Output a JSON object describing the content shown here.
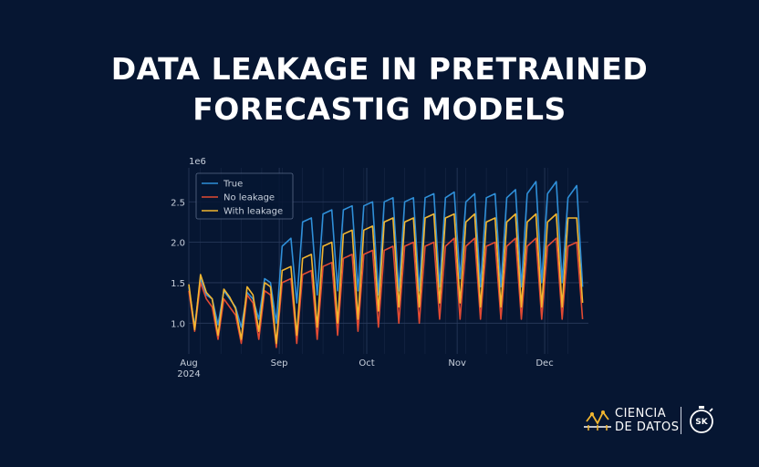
{
  "title_line1": "DATA LEAKAGE IN PRETRAINED",
  "title_line2": "FORECASTIG MODELS",
  "brand": {
    "line1": "CIENCIA",
    "line2": "DE DATOS",
    "badge": "SK",
    "logo_icon": "timeseries-logo-icon",
    "badge_icon": "stopwatch-icon"
  },
  "colors": {
    "background": "#061632",
    "grid": "#2a3b5c",
    "true": "#2f8fd8",
    "no_leakage": "#e24a33",
    "with_leakage": "#f2b630",
    "text": "#c8d0dc"
  },
  "chart_data": {
    "type": "line",
    "title": "",
    "xlabel": "",
    "ylabel": "",
    "y_offset_label": "1e6",
    "x_range": [
      "2024-08-01",
      "2024-12-16"
    ],
    "ylim": [
      0.62,
      2.92
    ],
    "yticks": [
      1.0,
      1.5,
      2.0,
      2.5
    ],
    "ytick_labels": [
      "1.0",
      "1.5",
      "2.0",
      "2.5"
    ],
    "xticks": [
      {
        "date": "2024-08-01",
        "label": "Aug",
        "sublabel": "2024"
      },
      {
        "date": "2024-09-01",
        "label": "Sep",
        "sublabel": ""
      },
      {
        "date": "2024-10-01",
        "label": "Oct",
        "sublabel": ""
      },
      {
        "date": "2024-11-01",
        "label": "Nov",
        "sublabel": ""
      },
      {
        "date": "2024-12-01",
        "label": "Dec",
        "sublabel": ""
      }
    ],
    "legend_position": "upper left",
    "grid": true,
    "series": [
      {
        "name": "True",
        "color": "#2f8fd8",
        "points": [
          [
            "2024-08-01",
            1.45
          ],
          [
            "2024-08-03",
            0.95
          ],
          [
            "2024-08-05",
            1.55
          ],
          [
            "2024-08-07",
            1.35
          ],
          [
            "2024-08-09",
            1.3
          ],
          [
            "2024-08-11",
            0.98
          ],
          [
            "2024-08-13",
            1.4
          ],
          [
            "2024-08-15",
            1.3
          ],
          [
            "2024-08-17",
            1.2
          ],
          [
            "2024-08-19",
            0.95
          ],
          [
            "2024-08-21",
            1.38
          ],
          [
            "2024-08-23",
            1.3
          ],
          [
            "2024-08-25",
            1.05
          ],
          [
            "2024-08-27",
            1.55
          ],
          [
            "2024-08-29",
            1.5
          ],
          [
            "2024-08-31",
            1.0
          ],
          [
            "2024-09-02",
            1.95
          ],
          [
            "2024-09-05",
            2.05
          ],
          [
            "2024-09-07",
            1.25
          ],
          [
            "2024-09-09",
            2.25
          ],
          [
            "2024-09-12",
            2.3
          ],
          [
            "2024-09-14",
            1.35
          ],
          [
            "2024-09-16",
            2.35
          ],
          [
            "2024-09-19",
            2.4
          ],
          [
            "2024-09-21",
            1.4
          ],
          [
            "2024-09-23",
            2.4
          ],
          [
            "2024-09-26",
            2.45
          ],
          [
            "2024-09-28",
            1.4
          ],
          [
            "2024-09-30",
            2.45
          ],
          [
            "2024-10-03",
            2.5
          ],
          [
            "2024-10-05",
            1.35
          ],
          [
            "2024-10-07",
            2.5
          ],
          [
            "2024-10-10",
            2.55
          ],
          [
            "2024-10-12",
            1.4
          ],
          [
            "2024-10-14",
            2.5
          ],
          [
            "2024-10-17",
            2.55
          ],
          [
            "2024-10-19",
            1.4
          ],
          [
            "2024-10-21",
            2.55
          ],
          [
            "2024-10-24",
            2.6
          ],
          [
            "2024-10-26",
            1.45
          ],
          [
            "2024-10-28",
            2.55
          ],
          [
            "2024-10-31",
            2.62
          ],
          [
            "2024-11-02",
            1.55
          ],
          [
            "2024-11-04",
            2.5
          ],
          [
            "2024-11-07",
            2.6
          ],
          [
            "2024-11-09",
            1.45
          ],
          [
            "2024-11-11",
            2.55
          ],
          [
            "2024-11-14",
            2.6
          ],
          [
            "2024-11-16",
            1.45
          ],
          [
            "2024-11-18",
            2.55
          ],
          [
            "2024-11-21",
            2.65
          ],
          [
            "2024-11-23",
            1.45
          ],
          [
            "2024-11-25",
            2.6
          ],
          [
            "2024-11-28",
            2.75
          ],
          [
            "2024-11-30",
            1.5
          ],
          [
            "2024-12-02",
            2.6
          ],
          [
            "2024-12-05",
            2.75
          ],
          [
            "2024-12-07",
            1.5
          ],
          [
            "2024-12-09",
            2.55
          ],
          [
            "2024-12-12",
            2.7
          ],
          [
            "2024-12-14",
            1.45
          ]
        ]
      },
      {
        "name": "No leakage",
        "color": "#e24a33",
        "points": [
          [
            "2024-08-01",
            1.4
          ],
          [
            "2024-08-03",
            0.9
          ],
          [
            "2024-08-05",
            1.5
          ],
          [
            "2024-08-07",
            1.3
          ],
          [
            "2024-08-09",
            1.2
          ],
          [
            "2024-08-11",
            0.8
          ],
          [
            "2024-08-13",
            1.3
          ],
          [
            "2024-08-15",
            1.2
          ],
          [
            "2024-08-17",
            1.1
          ],
          [
            "2024-08-19",
            0.75
          ],
          [
            "2024-08-21",
            1.35
          ],
          [
            "2024-08-23",
            1.25
          ],
          [
            "2024-08-25",
            0.8
          ],
          [
            "2024-08-27",
            1.4
          ],
          [
            "2024-08-29",
            1.35
          ],
          [
            "2024-08-31",
            0.7
          ],
          [
            "2024-09-02",
            1.5
          ],
          [
            "2024-09-05",
            1.55
          ],
          [
            "2024-09-07",
            0.75
          ],
          [
            "2024-09-09",
            1.6
          ],
          [
            "2024-09-12",
            1.65
          ],
          [
            "2024-09-14",
            0.8
          ],
          [
            "2024-09-16",
            1.7
          ],
          [
            "2024-09-19",
            1.75
          ],
          [
            "2024-09-21",
            0.85
          ],
          [
            "2024-09-23",
            1.8
          ],
          [
            "2024-09-26",
            1.85
          ],
          [
            "2024-09-28",
            0.9
          ],
          [
            "2024-09-30",
            1.85
          ],
          [
            "2024-10-03",
            1.9
          ],
          [
            "2024-10-05",
            0.95
          ],
          [
            "2024-10-07",
            1.9
          ],
          [
            "2024-10-10",
            1.95
          ],
          [
            "2024-10-12",
            1.0
          ],
          [
            "2024-10-14",
            1.95
          ],
          [
            "2024-10-17",
            2.0
          ],
          [
            "2024-10-19",
            1.0
          ],
          [
            "2024-10-21",
            1.95
          ],
          [
            "2024-10-24",
            2.0
          ],
          [
            "2024-10-26",
            1.05
          ],
          [
            "2024-10-28",
            1.95
          ],
          [
            "2024-10-31",
            2.05
          ],
          [
            "2024-11-02",
            1.05
          ],
          [
            "2024-11-04",
            1.95
          ],
          [
            "2024-11-07",
            2.05
          ],
          [
            "2024-11-09",
            1.05
          ],
          [
            "2024-11-11",
            1.95
          ],
          [
            "2024-11-14",
            2.0
          ],
          [
            "2024-11-16",
            1.05
          ],
          [
            "2024-11-18",
            1.95
          ],
          [
            "2024-11-21",
            2.05
          ],
          [
            "2024-11-23",
            1.05
          ],
          [
            "2024-11-25",
            1.95
          ],
          [
            "2024-11-28",
            2.05
          ],
          [
            "2024-11-30",
            1.05
          ],
          [
            "2024-12-02",
            1.95
          ],
          [
            "2024-12-05",
            2.05
          ],
          [
            "2024-12-07",
            1.05
          ],
          [
            "2024-12-09",
            1.95
          ],
          [
            "2024-12-12",
            2.0
          ],
          [
            "2024-12-14",
            1.05
          ]
        ]
      },
      {
        "name": "With leakage",
        "color": "#f2b630",
        "points": [
          [
            "2024-08-01",
            1.48
          ],
          [
            "2024-08-03",
            0.92
          ],
          [
            "2024-08-05",
            1.6
          ],
          [
            "2024-08-07",
            1.38
          ],
          [
            "2024-08-09",
            1.3
          ],
          [
            "2024-08-11",
            0.85
          ],
          [
            "2024-08-13",
            1.42
          ],
          [
            "2024-08-15",
            1.32
          ],
          [
            "2024-08-17",
            1.18
          ],
          [
            "2024-08-19",
            0.8
          ],
          [
            "2024-08-21",
            1.45
          ],
          [
            "2024-08-23",
            1.35
          ],
          [
            "2024-08-25",
            0.9
          ],
          [
            "2024-08-27",
            1.5
          ],
          [
            "2024-08-29",
            1.45
          ],
          [
            "2024-08-31",
            0.75
          ],
          [
            "2024-09-02",
            1.65
          ],
          [
            "2024-09-05",
            1.7
          ],
          [
            "2024-09-07",
            0.85
          ],
          [
            "2024-09-09",
            1.8
          ],
          [
            "2024-09-12",
            1.85
          ],
          [
            "2024-09-14",
            0.95
          ],
          [
            "2024-09-16",
            1.95
          ],
          [
            "2024-09-19",
            2.0
          ],
          [
            "2024-09-21",
            1.0
          ],
          [
            "2024-09-23",
            2.1
          ],
          [
            "2024-09-26",
            2.15
          ],
          [
            "2024-09-28",
            1.05
          ],
          [
            "2024-09-30",
            2.15
          ],
          [
            "2024-10-03",
            2.2
          ],
          [
            "2024-10-05",
            1.15
          ],
          [
            "2024-10-07",
            2.25
          ],
          [
            "2024-10-10",
            2.3
          ],
          [
            "2024-10-12",
            1.2
          ],
          [
            "2024-10-14",
            2.25
          ],
          [
            "2024-10-17",
            2.3
          ],
          [
            "2024-10-19",
            1.2
          ],
          [
            "2024-10-21",
            2.3
          ],
          [
            "2024-10-24",
            2.35
          ],
          [
            "2024-10-26",
            1.25
          ],
          [
            "2024-10-28",
            2.3
          ],
          [
            "2024-10-31",
            2.35
          ],
          [
            "2024-11-02",
            1.25
          ],
          [
            "2024-11-04",
            2.25
          ],
          [
            "2024-11-07",
            2.35
          ],
          [
            "2024-11-09",
            1.2
          ],
          [
            "2024-11-11",
            2.25
          ],
          [
            "2024-11-14",
            2.3
          ],
          [
            "2024-11-16",
            1.2
          ],
          [
            "2024-11-18",
            2.25
          ],
          [
            "2024-11-21",
            2.35
          ],
          [
            "2024-11-23",
            1.2
          ],
          [
            "2024-11-25",
            2.25
          ],
          [
            "2024-11-28",
            2.35
          ],
          [
            "2024-11-30",
            1.2
          ],
          [
            "2024-12-02",
            2.25
          ],
          [
            "2024-12-05",
            2.35
          ],
          [
            "2024-12-07",
            1.2
          ],
          [
            "2024-12-09",
            2.3
          ],
          [
            "2024-12-12",
            2.3
          ],
          [
            "2024-12-14",
            1.25
          ]
        ]
      }
    ]
  }
}
